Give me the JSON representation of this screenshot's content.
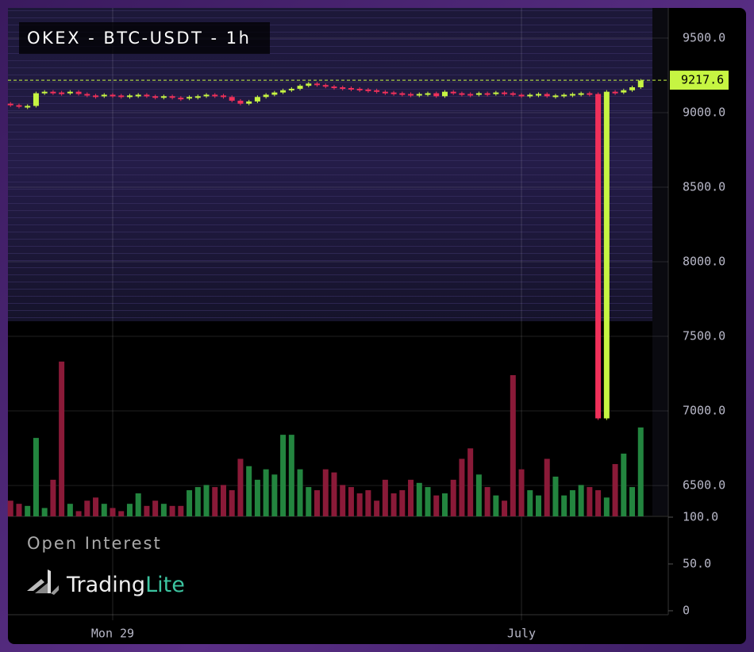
{
  "chart_data": {
    "type": "candlestick",
    "title": "OKEX - BTC-USDT - 1h",
    "subpanel_title": "Open Interest",
    "brand": {
      "name": "Trading",
      "suffix": "Lite"
    },
    "categories": [
      null,
      null,
      null,
      null,
      null,
      null,
      null,
      null,
      null,
      null,
      null,
      null,
      "Mon 29",
      null,
      null,
      null,
      null,
      null,
      null,
      null,
      null,
      null,
      null,
      null,
      null,
      null,
      null,
      null,
      null,
      null,
      null,
      null,
      null,
      null,
      null,
      null,
      null,
      null,
      null,
      null,
      null,
      null,
      null,
      null,
      null,
      null,
      null,
      null,
      null,
      null,
      null,
      null,
      null,
      null,
      null,
      null,
      null,
      null,
      null,
      null,
      "July",
      null,
      null,
      null,
      null,
      null,
      null,
      null,
      null,
      null,
      null,
      null,
      null,
      null,
      null
    ],
    "open": [
      9060,
      9050,
      9040,
      9045,
      9130,
      9140,
      9135,
      9130,
      9140,
      9125,
      9115,
      9110,
      9120,
      9115,
      9110,
      9115,
      9120,
      9110,
      9105,
      9110,
      9100,
      9095,
      9105,
      9110,
      9120,
      9115,
      9105,
      9080,
      9060,
      9075,
      9105,
      9120,
      9135,
      9150,
      9160,
      9180,
      9195,
      9185,
      9175,
      9170,
      9165,
      9160,
      9155,
      9150,
      9140,
      9135,
      9130,
      9125,
      9120,
      9125,
      9130,
      9110,
      9140,
      9130,
      9125,
      9120,
      9130,
      9125,
      9135,
      9130,
      9120,
      9115,
      9120,
      9125,
      9110,
      9115,
      9120,
      9125,
      9130,
      9125,
      6950,
      9140,
      9135,
      9150,
      9170
    ],
    "close": [
      9050,
      9040,
      9045,
      9130,
      9140,
      9135,
      9130,
      9140,
      9125,
      9115,
      9110,
      9120,
      9115,
      9110,
      9115,
      9120,
      9110,
      9105,
      9110,
      9100,
      9095,
      9105,
      9110,
      9120,
      9115,
      9105,
      9080,
      9060,
      9075,
      9105,
      9120,
      9135,
      9150,
      9160,
      9180,
      9195,
      9185,
      9175,
      9170,
      9165,
      9160,
      9155,
      9150,
      9140,
      9135,
      9130,
      9125,
      9120,
      9125,
      9130,
      9110,
      9140,
      9130,
      9125,
      9120,
      9130,
      9125,
      9135,
      9130,
      9120,
      9115,
      9120,
      9125,
      9110,
      9115,
      9120,
      9125,
      9130,
      9125,
      6950,
      9140,
      9135,
      9150,
      9170,
      9215
    ],
    "volume": [
      15,
      12,
      10,
      75,
      8,
      35,
      148,
      12,
      5,
      15,
      18,
      12,
      8,
      5,
      12,
      22,
      10,
      15,
      12,
      10,
      10,
      25,
      28,
      30,
      28,
      30,
      25,
      55,
      48,
      35,
      45,
      40,
      78,
      78,
      45,
      28,
      25,
      45,
      42,
      30,
      28,
      22,
      25,
      15,
      35,
      22,
      25,
      35,
      32,
      28,
      20,
      22,
      35,
      55,
      65,
      40,
      28,
      20,
      15,
      135,
      45,
      25,
      20,
      55,
      38,
      20,
      25,
      30,
      28,
      25,
      18,
      50,
      60,
      28,
      85
    ],
    "volume_ylim": [
      0,
      160
    ],
    "up_color": "#c6f542",
    "down_color": "#f0305a",
    "volume_up_color": "#23853f",
    "volume_down_color": "#8a1a38",
    "last_price": 9217.6,
    "ylim": [
      6293,
      9702
    ],
    "yticks": [
      {
        "value": 9500,
        "label": "9500.0"
      },
      {
        "value": 9000,
        "label": "9000.0"
      },
      {
        "value": 8500,
        "label": "8500.0"
      },
      {
        "value": 8000,
        "label": "8000.0"
      },
      {
        "value": 7500,
        "label": "7500.0"
      },
      {
        "value": 7000,
        "label": "7000.0"
      },
      {
        "value": 6500,
        "label": "6500.0"
      }
    ],
    "oi_ylim": [
      0,
      100
    ],
    "oi_yticks": [
      {
        "value": 100,
        "label": "100.0"
      },
      {
        "value": 50,
        "label": "50.0"
      },
      {
        "value": 0,
        "label": "0"
      }
    ],
    "grid": true
  }
}
